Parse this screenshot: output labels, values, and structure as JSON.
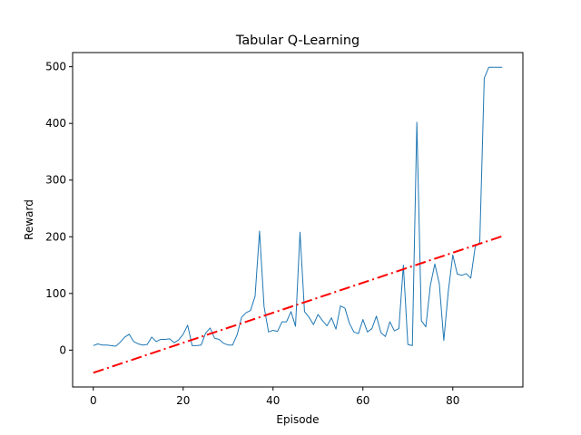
{
  "chart_data": {
    "type": "line",
    "title": "Tabular Q-Learning",
    "xlabel": "Episode",
    "ylabel": "Reward",
    "xlim": [
      -4.6,
      95.6
    ],
    "ylim": [
      -65,
      525
    ],
    "xticks": [
      0,
      20,
      40,
      60,
      80
    ],
    "yticks": [
      0,
      100,
      200,
      300,
      400,
      500
    ],
    "grid": false,
    "legend": "none",
    "series": [
      {
        "color": "#1f77b4",
        "style": "solid",
        "x": [
          0,
          1,
          2,
          3,
          4,
          5,
          6,
          7,
          8,
          9,
          10,
          11,
          12,
          13,
          14,
          15,
          16,
          17,
          18,
          19,
          20,
          21,
          22,
          23,
          24,
          25,
          26,
          27,
          28,
          29,
          30,
          31,
          32,
          33,
          34,
          35,
          36,
          37,
          38,
          39,
          40,
          41,
          42,
          43,
          44,
          45,
          46,
          47,
          48,
          49,
          50,
          51,
          52,
          53,
          54,
          55,
          56,
          57,
          58,
          59,
          60,
          61,
          62,
          63,
          64,
          65,
          66,
          67,
          68,
          69,
          70,
          71,
          72,
          73,
          74,
          75,
          76,
          77,
          78,
          79,
          80,
          81,
          82,
          83,
          84,
          85,
          86,
          87,
          88,
          89,
          90,
          91
        ],
        "y": [
          8,
          11,
          9,
          9,
          8,
          7,
          14,
          23,
          28,
          15,
          11,
          9,
          10,
          23,
          15,
          19,
          19,
          20,
          13,
          18,
          28,
          44,
          8,
          8,
          9,
          30,
          39,
          21,
          19,
          12,
          9,
          9,
          27,
          58,
          66,
          70,
          95,
          210,
          77,
          32,
          35,
          33,
          50,
          50,
          68,
          42,
          208,
          68,
          58,
          45,
          63,
          52,
          43,
          57,
          37,
          78,
          74,
          47,
          32,
          29,
          54,
          32,
          38,
          60,
          31,
          24,
          50,
          34,
          38,
          150,
          10,
          8,
          402,
          52,
          41,
          114,
          152,
          117,
          17,
          104,
          168,
          134,
          132,
          135,
          127,
          183,
          190,
          480,
          499,
          499,
          499,
          499
        ]
      },
      {
        "color": "#ff0000",
        "style": "dashdot",
        "x": [
          0,
          91
        ],
        "y": [
          -40,
          201
        ]
      }
    ]
  }
}
